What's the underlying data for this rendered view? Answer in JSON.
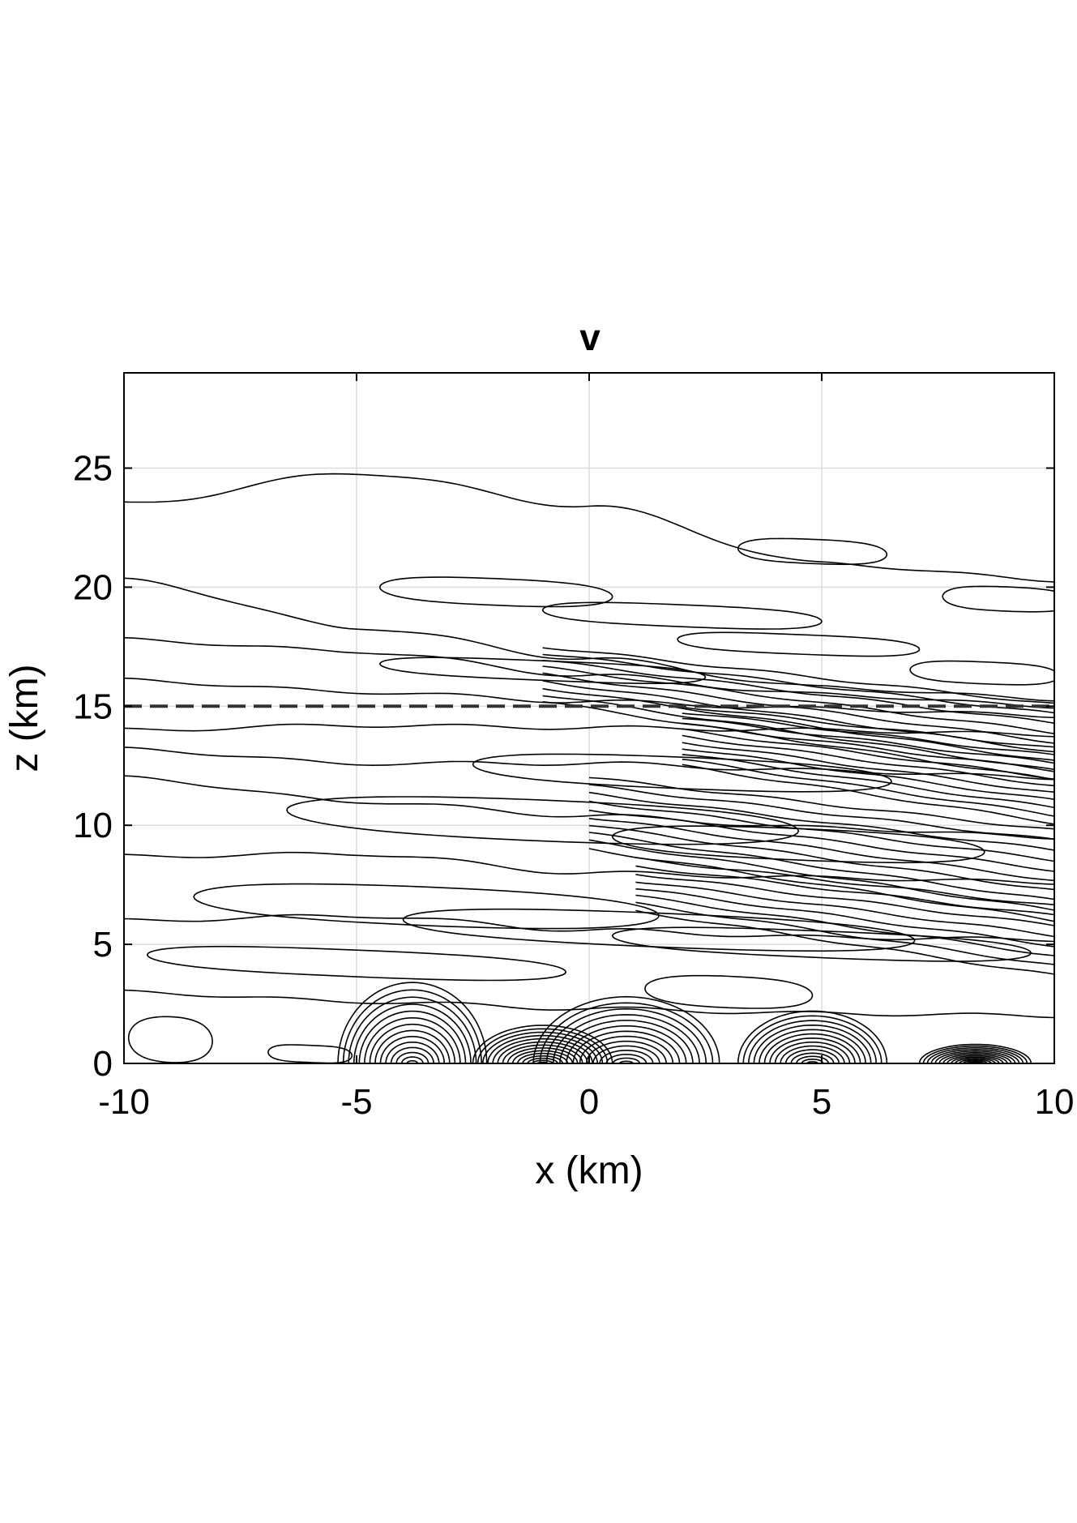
{
  "chart_data": {
    "type": "contour",
    "title": "v",
    "xlabel": "x (km)",
    "ylabel": "z (km)",
    "xlim": [
      -10,
      10
    ],
    "ylim": [
      0,
      29
    ],
    "xticks": [
      -10,
      -5,
      0,
      5,
      10
    ],
    "yticks": [
      0,
      5,
      10,
      15,
      20,
      25
    ],
    "xtick_labels": [
      "-10",
      "-5",
      "0",
      "5",
      "10"
    ],
    "ytick_labels": [
      "0",
      "5",
      "10",
      "15",
      "20",
      "25"
    ],
    "grid": true,
    "reference_line": {
      "style": "dashed",
      "z": 15
    },
    "contour_bands": [
      {
        "x": [
          -10,
          -5,
          0,
          5,
          10
        ],
        "z": [
          23.5,
          24.8,
          23.4,
          21.0,
          20.3
        ]
      },
      {
        "x": [
          -10,
          -5,
          0,
          5,
          10
        ],
        "z": [
          20.3,
          18.3,
          17.0,
          15.8,
          15.3
        ]
      },
      {
        "x": [
          -10,
          -5,
          0,
          5,
          10
        ],
        "z": [
          17.8,
          17.3,
          16.3,
          15.5,
          15.0
        ]
      },
      {
        "x": [
          -10,
          -5,
          0,
          5,
          10
        ],
        "z": [
          16.1,
          15.6,
          15.2,
          14.9,
          14.6
        ]
      },
      {
        "x": [
          -10,
          -5,
          0,
          5,
          10
        ],
        "z": [
          14.0,
          14.2,
          14.1,
          14.0,
          13.8
        ]
      },
      {
        "x": [
          -10,
          -5,
          0,
          5,
          10
        ],
        "z": [
          13.2,
          12.6,
          12.6,
          12.3,
          12.0
        ]
      },
      {
        "x": [
          -10,
          -5,
          0,
          5,
          10
        ],
        "z": [
          12.0,
          11.0,
          10.4,
          9.9,
          9.5
        ]
      },
      {
        "x": [
          -10,
          -5,
          0,
          5,
          10
        ],
        "z": [
          8.7,
          8.8,
          8.0,
          7.8,
          7.6
        ]
      },
      {
        "x": [
          -10,
          -5,
          0,
          5,
          10
        ],
        "z": [
          6.0,
          6.2,
          5.6,
          5.3,
          5.2
        ]
      },
      {
        "x": [
          -10,
          -5,
          0,
          5,
          10
        ],
        "z": [
          3.0,
          2.6,
          2.3,
          2.1,
          2.0
        ]
      }
    ],
    "closed_contours": [
      {
        "cx": -2.0,
        "cz": 19.8,
        "rx": 2.5,
        "rz": 0.6
      },
      {
        "cx": 4.8,
        "cz": 21.5,
        "rx": 1.6,
        "rz": 0.55
      },
      {
        "cx": 9.0,
        "cz": 19.5,
        "rx": 1.4,
        "rz": 0.55
      },
      {
        "cx": 2.0,
        "cz": 18.8,
        "rx": 3.0,
        "rz": 0.5
      },
      {
        "cx": 4.5,
        "cz": 17.6,
        "rx": 2.6,
        "rz": 0.45
      },
      {
        "cx": 8.5,
        "cz": 16.4,
        "rx": 1.6,
        "rz": 0.5
      },
      {
        "cx": -1.0,
        "cz": 16.5,
        "rx": 3.5,
        "rz": 0.45
      },
      {
        "cx": 2.0,
        "cz": 12.2,
        "rx": 4.5,
        "rz": 0.7
      },
      {
        "cx": -1.0,
        "cz": 10.2,
        "rx": 5.5,
        "rz": 0.9
      },
      {
        "cx": 4.5,
        "cz": 9.2,
        "rx": 4.0,
        "rz": 0.7
      },
      {
        "cx": -3.5,
        "cz": 6.6,
        "rx": 5.0,
        "rz": 0.85
      },
      {
        "cx": 1.5,
        "cz": 5.6,
        "rx": 5.5,
        "rz": 0.75
      },
      {
        "cx": 5.0,
        "cz": 5.0,
        "rx": 4.5,
        "rz": 0.6
      },
      {
        "cx": -5.0,
        "cz": 4.2,
        "rx": 4.5,
        "rz": 0.6
      },
      {
        "cx": 3.0,
        "cz": 3.0,
        "rx": 1.8,
        "rz": 0.7
      },
      {
        "cx": -9.0,
        "cz": 1.0,
        "rx": 0.9,
        "rz": 1.0
      },
      {
        "cx": -6.0,
        "cz": 0.4,
        "rx": 0.9,
        "rz": 0.4
      }
    ],
    "surface_lobes": [
      {
        "cx": -3.8,
        "h": 3.4,
        "w": 1.6
      },
      {
        "cx": -1.0,
        "h": 1.6,
        "w": 1.5
      },
      {
        "cx": 0.8,
        "h": 2.8,
        "w": 2.0
      },
      {
        "cx": 4.8,
        "h": 2.2,
        "w": 1.6
      },
      {
        "cx": 8.3,
        "h": 0.8,
        "w": 1.2
      }
    ]
  }
}
